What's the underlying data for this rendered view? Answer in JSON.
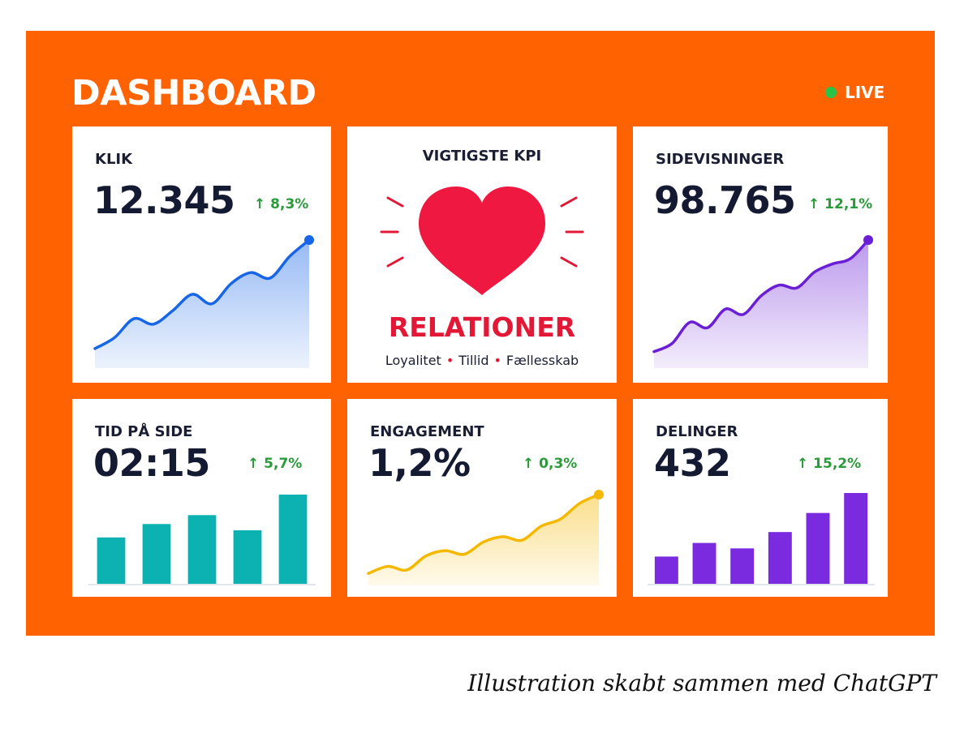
{
  "dashboard": {
    "title": "DASHBOARD",
    "live_label": "LIVE",
    "colors": {
      "background": "#ff6200",
      "live": "#2bc24a",
      "up": "#2a9a3a"
    }
  },
  "cards": {
    "klik": {
      "title": "KLIK",
      "value": "12.345",
      "change": "↑ 8,3%"
    },
    "kpi": {
      "title": "VIGTIGSTE KPI",
      "name": "RELATIONER",
      "tags": [
        "Loyalitet",
        "Tillid",
        "Fællesskab"
      ],
      "separator": "•",
      "icon": "heart-icon"
    },
    "sidevisninger": {
      "title": "SIDEVISNINGER",
      "value": "98.765",
      "change": "↑ 12,1%"
    },
    "tid": {
      "title": "TID PÅ SIDE",
      "value": "02:15",
      "change": "↑ 5,7%"
    },
    "engagement": {
      "title": "ENGAGEMENT",
      "value": "1,2%",
      "change": "↑ 0,3%"
    },
    "delinger": {
      "title": "DELINGER",
      "value": "432",
      "change": "↑ 15,2%"
    }
  },
  "chart_data": [
    {
      "type": "area",
      "card": "KLIK",
      "color": "#1766e8",
      "values": [
        12,
        20,
        34,
        30,
        40,
        52,
        45,
        60,
        68,
        64,
        80,
        92
      ]
    },
    {
      "type": "area",
      "card": "SIDEVISNINGER",
      "color": "#6a1fd6",
      "values": [
        10,
        16,
        32,
        28,
        42,
        38,
        52,
        60,
        58,
        70,
        76,
        80,
        94
      ]
    },
    {
      "type": "bar",
      "card": "TID PÅ SIDE",
      "color": "#0cb1b1",
      "values": [
        52,
        67,
        77,
        60,
        100
      ]
    },
    {
      "type": "area",
      "card": "ENGAGEMENT",
      "color": "#f5b800",
      "values": [
        10,
        18,
        14,
        30,
        36,
        32,
        46,
        52,
        48,
        64,
        72,
        90,
        100
      ]
    },
    {
      "type": "bar",
      "card": "DELINGER",
      "color": "#7a2be0",
      "values": [
        30,
        45,
        39,
        57,
        78,
        100
      ]
    }
  ]
}
